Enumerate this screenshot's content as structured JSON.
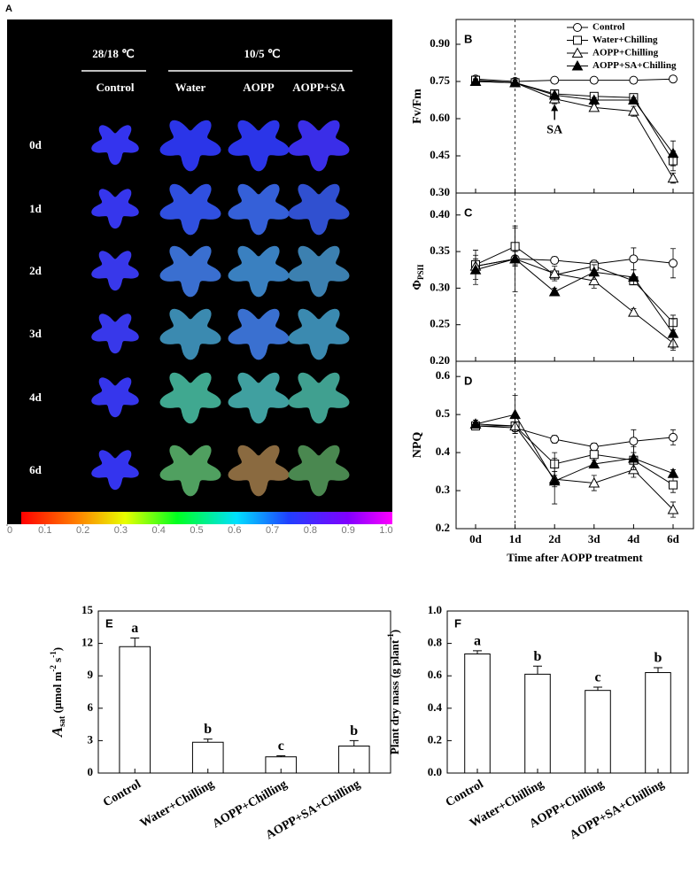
{
  "panel_a": {
    "panel_label": "A",
    "groups": [
      "28/18 ℃",
      "10/5 ℃"
    ],
    "columns": [
      "Control",
      "Water",
      "AOPP",
      "AOPP+SA"
    ],
    "rows": [
      "0d",
      "1d",
      "2d",
      "3d",
      "4d",
      "6d"
    ],
    "colorbar": {
      "ticks": [
        0,
        0.1,
        0.2,
        0.3,
        0.4,
        0.5,
        0.6,
        0.7,
        0.8,
        0.9,
        {
          "value": 1,
          "label": "1.0"
        }
      ]
    }
  },
  "chart_data": [
    {
      "type": "line",
      "panel_label": "B",
      "ylabel": "Fv/Fm",
      "annotation": "SA",
      "legend": "top-right",
      "ylim": [
        0.3,
        1.0
      ],
      "yticks": [
        {
          "value": 0.3,
          "label": "0.30"
        },
        0.45,
        {
          "value": 0.6,
          "label": "0.60"
        },
        0.75,
        {
          "value": 0.9,
          "label": "0.90"
        }
      ],
      "series": [
        {
          "name": "Control",
          "color": "#000000",
          "marker": "circle-open",
          "values": [
            0.76,
            0.75,
            0.755,
            0.755,
            0.755,
            0.76
          ],
          "errors": [
            0.01,
            0.01,
            0.01,
            0.005,
            0.005,
            0.01
          ]
        },
        {
          "name": "Water+Chilling",
          "color": "#000000",
          "marker": "square-open",
          "values": [
            0.755,
            0.745,
            0.7,
            0.69,
            0.685,
            0.43
          ],
          "errors": [
            0.01,
            0.01,
            0.01,
            0.01,
            0.01,
            0.04
          ]
        },
        {
          "name": "AOPP+Chilling",
          "color": "#000000",
          "marker": "triangle-open",
          "values": [
            0.75,
            0.745,
            0.68,
            0.645,
            0.63,
            0.36
          ],
          "errors": [
            0.01,
            0.01,
            0.02,
            0.01,
            0.02,
            0.02
          ]
        },
        {
          "name": "AOPP+SA+Chilling",
          "color": "#000000",
          "marker": "triangle-filled",
          "values": [
            0.75,
            0.745,
            0.695,
            0.675,
            0.675,
            0.46
          ],
          "errors": [
            0.01,
            0.01,
            0.02,
            0.01,
            0.01,
            0.05
          ]
        }
      ]
    },
    {
      "type": "line",
      "panel_label": "C",
      "ylabel": "Φ",
      "ylabel_sub": "PSII",
      "ylim": [
        0.2,
        0.43
      ],
      "yticks": [
        {
          "value": 0.2,
          "label": "0.20"
        },
        0.25,
        {
          "value": 0.3,
          "label": "0.30"
        },
        0.35,
        {
          "value": 0.4,
          "label": "0.40"
        }
      ],
      "series": [
        {
          "color": "#000000",
          "marker": "circle-open",
          "values": [
            0.33,
            0.34,
            0.338,
            0.333,
            0.34,
            0.334
          ],
          "errors": [
            0.01,
            0.01,
            0.005,
            0.005,
            0.015,
            0.02
          ]
        },
        {
          "color": "#000000",
          "marker": "square-open",
          "values": [
            0.332,
            0.357,
            0.318,
            0.33,
            0.31,
            0.253
          ],
          "errors": [
            0.02,
            0.025,
            0.005,
            0.005,
            0.005,
            0.01
          ]
        },
        {
          "color": "#000000",
          "marker": "triangle-open",
          "values": [
            0.33,
            0.34,
            0.32,
            0.31,
            0.267,
            0.225
          ],
          "errors": [
            0.01,
            0.01,
            0.01,
            0.01,
            0.005,
            0.01
          ]
        },
        {
          "color": "#000000",
          "marker": "triangle-filled",
          "values": [
            0.325,
            0.34,
            0.295,
            0.322,
            0.315,
            0.238
          ],
          "errors": [
            0.02,
            0.045,
            0.005,
            0.01,
            0.01,
            0.02
          ]
        }
      ]
    },
    {
      "type": "line",
      "panel_label": "D",
      "ylabel": "NPQ",
      "xlabel": "Time after AOPP treatment",
      "categories": [
        "0d",
        "1d",
        "2d",
        "3d",
        "4d",
        "6d"
      ],
      "ylim": [
        0.2,
        0.64
      ],
      "yticks": [
        0.2,
        0.3,
        0.4,
        0.5,
        0.6
      ],
      "series": [
        {
          "color": "#000000",
          "marker": "circle-open",
          "values": [
            0.47,
            0.465,
            0.435,
            0.415,
            0.43,
            0.44
          ],
          "errors": [
            0.01,
            0.01,
            0.01,
            0.01,
            0.03,
            0.02
          ]
        },
        {
          "color": "#000000",
          "marker": "square-open",
          "values": [
            0.47,
            0.47,
            0.37,
            0.395,
            0.38,
            0.315
          ],
          "errors": [
            0.01,
            0.02,
            0.03,
            0.01,
            0.02,
            0.02
          ]
        },
        {
          "color": "#000000",
          "marker": "triangle-open",
          "values": [
            0.475,
            0.47,
            0.33,
            0.32,
            0.355,
            0.25
          ],
          "errors": [
            0.01,
            0.02,
            0.02,
            0.02,
            0.02,
            0.02
          ]
        },
        {
          "color": "#000000",
          "marker": "triangle-filled",
          "values": [
            0.475,
            0.5,
            0.325,
            0.37,
            0.385,
            0.345
          ],
          "errors": [
            0.01,
            0.05,
            0.06,
            0.01,
            0.03,
            0.01
          ]
        }
      ]
    },
    {
      "type": "bar",
      "panel_label": "E",
      "ylabel": {
        "symbol": "A",
        "sub": "sat",
        "unit": " (μmol m",
        "sup1": "-2",
        "unit2": " s",
        "sup2": "-1",
        "close": ")"
      },
      "categories": [
        "Control",
        "Water+Chilling",
        "AOPP+Chilling",
        "AOPP+SA+Chilling"
      ],
      "values": [
        11.7,
        2.85,
        1.5,
        2.5
      ],
      "errors": [
        0.8,
        0.3,
        0.1,
        0.5
      ],
      "annotations": [
        "a",
        "b",
        "c",
        "b"
      ],
      "color": "#ffffff",
      "ylim": [
        0,
        15
      ],
      "yticks": [
        0,
        3,
        6,
        9,
        12,
        15
      ]
    },
    {
      "type": "bar",
      "panel_label": "F",
      "ylabel": {
        "unit": "Plant dry mass (g plant",
        "sup1": "-1",
        "close": ")"
      },
      "categories": [
        "Control",
        "Water+Chilling",
        "AOPP+Chilling",
        "AOPP+SA+Chilling"
      ],
      "values": [
        0.735,
        0.61,
        0.51,
        0.62
      ],
      "errors": [
        0.02,
        0.05,
        0.02,
        0.03
      ],
      "annotations": [
        "a",
        "b",
        "c",
        "b"
      ],
      "color": "#ffffff",
      "ylim": [
        0,
        1.0
      ],
      "yticks": [
        {
          "value": 0,
          "label": "0.0"
        },
        0.2,
        0.4,
        0.6,
        0.8,
        {
          "value": 1,
          "label": "1.0"
        }
      ]
    }
  ]
}
